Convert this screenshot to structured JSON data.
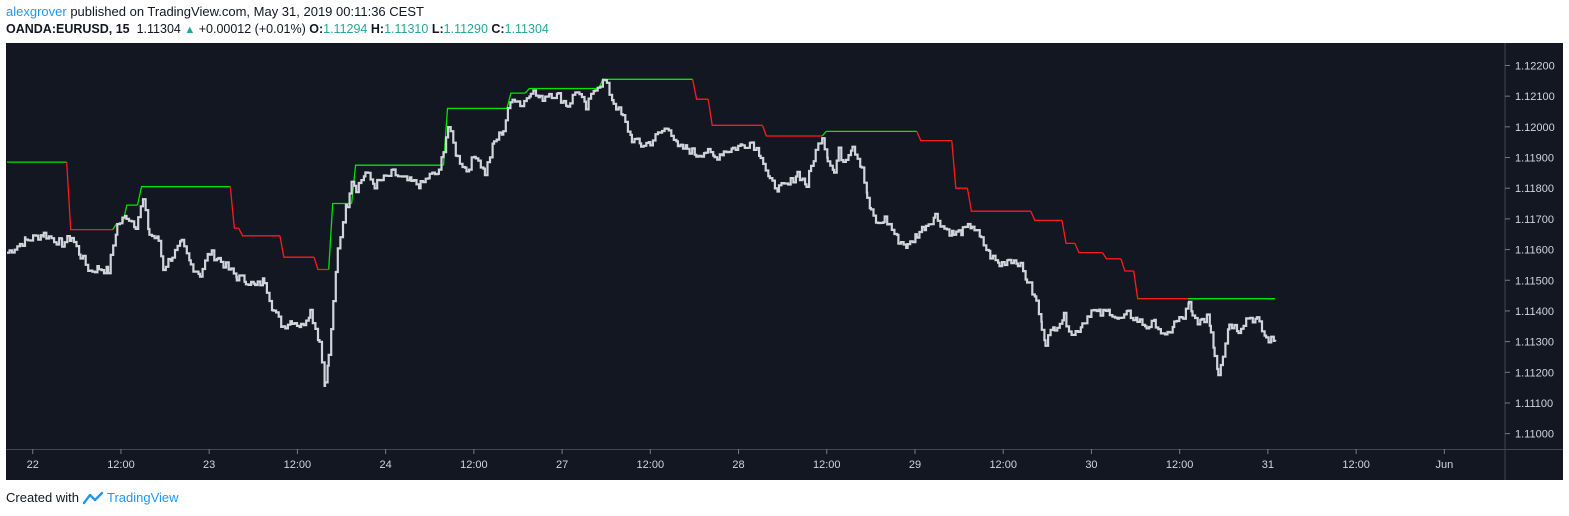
{
  "header": {
    "author": "alexgrover",
    "published_text": " published on TradingView.com, May 31, 2019 00:11:36 CEST",
    "symbol": "OANDA:EURUSD, 15",
    "last_price": "1.11304",
    "change": "+0.00012 (+0.01%)",
    "o_label": "O:",
    "o_value": "1.11294",
    "h_label": "H:",
    "h_value": "1.11310",
    "l_label": "L:",
    "l_value": "1.11290",
    "c_label": "C:",
    "c_value": "1.11304"
  },
  "footer": {
    "created_with": "Created with",
    "brand": "TradingView"
  },
  "colors": {
    "background": "#131722",
    "price": "#d1d4dc",
    "trail_up": "#00e600",
    "trail_down": "#ff1a1a",
    "axis_text": "#d1d4dc"
  },
  "chart_data": {
    "type": "line",
    "y_ticks": [
      "1.12200",
      "1.12100",
      "1.12000",
      "1.11900",
      "1.11800",
      "1.11700",
      "1.11600",
      "1.11500",
      "1.11400",
      "1.11300",
      "1.11200",
      "1.11100",
      "1.11000"
    ],
    "ylim": [
      1.1095,
      1.1227
    ],
    "xlim": [
      0,
      163
    ],
    "x_ticks": [
      {
        "x": 2.8,
        "label": "22"
      },
      {
        "x": 12.4,
        "label": "12:00"
      },
      {
        "x": 22,
        "label": "23"
      },
      {
        "x": 31.6,
        "label": "12:00"
      },
      {
        "x": 41.2,
        "label": "24"
      },
      {
        "x": 50.8,
        "label": "12:00"
      },
      {
        "x": 60.4,
        "label": "27"
      },
      {
        "x": 70,
        "label": "12:00"
      },
      {
        "x": 79.6,
        "label": "28"
      },
      {
        "x": 89.2,
        "label": "12:00"
      },
      {
        "x": 98.8,
        "label": "29"
      },
      {
        "x": 108.4,
        "label": "12:00"
      },
      {
        "x": 118,
        "label": "30"
      },
      {
        "x": 127.6,
        "label": "12:00"
      },
      {
        "x": 137.2,
        "label": "31"
      },
      {
        "x": 146.8,
        "label": "12:00"
      },
      {
        "x": 156.4,
        "label": "Jun"
      }
    ],
    "price_anchors": [
      [
        0,
        1.1159
      ],
      [
        2,
        1.1163
      ],
      [
        4,
        1.1165
      ],
      [
        6,
        1.1162
      ],
      [
        7,
        1.1164
      ],
      [
        8,
        1.1158
      ],
      [
        9,
        1.1153
      ],
      [
        10,
        1.1154
      ],
      [
        11,
        1.1153
      ],
      [
        12,
        1.1168
      ],
      [
        13,
        1.1171
      ],
      [
        14,
        1.1168
      ],
      [
        14.8,
        1.1176
      ],
      [
        15.5,
        1.1165
      ],
      [
        16.5,
        1.1163
      ],
      [
        17,
        1.1154
      ],
      [
        18,
        1.1158
      ],
      [
        19,
        1.1162
      ],
      [
        20,
        1.1155
      ],
      [
        21,
        1.1152
      ],
      [
        22,
        1.1159
      ],
      [
        23,
        1.1157
      ],
      [
        25,
        1.1151
      ],
      [
        26,
        1.115
      ],
      [
        27,
        1.1148
      ],
      [
        28,
        1.115
      ],
      [
        29,
        1.114
      ],
      [
        30,
        1.1135
      ],
      [
        31,
        1.1137
      ],
      [
        32,
        1.1135
      ],
      [
        33,
        1.114
      ],
      [
        34,
        1.113
      ],
      [
        34.6,
        1.1116
      ],
      [
        35,
        1.1125
      ],
      [
        35.5,
        1.1142
      ],
      [
        36,
        1.116
      ],
      [
        36.6,
        1.117
      ],
      [
        37,
        1.1175
      ],
      [
        37.5,
        1.1183
      ],
      [
        38,
        1.118
      ],
      [
        39,
        1.1185
      ],
      [
        40,
        1.1181
      ],
      [
        41,
        1.1183
      ],
      [
        42,
        1.1185
      ],
      [
        43,
        1.1183
      ],
      [
        44,
        1.1182
      ],
      [
        45,
        1.1181
      ],
      [
        46,
        1.1184
      ],
      [
        47,
        1.1185
      ],
      [
        47.5,
        1.1193
      ],
      [
        48,
        1.12
      ],
      [
        49,
        1.119
      ],
      [
        50,
        1.1186
      ],
      [
        51,
        1.1191
      ],
      [
        52,
        1.1185
      ],
      [
        53,
        1.1195
      ],
      [
        54,
        1.1199
      ],
      [
        54.5,
        1.1205
      ],
      [
        55,
        1.121
      ],
      [
        56,
        1.1207
      ],
      [
        57,
        1.1212
      ],
      [
        58,
        1.1209
      ],
      [
        59,
        1.1211
      ],
      [
        60,
        1.121
      ],
      [
        61,
        1.1207
      ],
      [
        62,
        1.1212
      ],
      [
        63,
        1.1206
      ],
      [
        64,
        1.1213
      ],
      [
        65,
        1.1215
      ],
      [
        66,
        1.1208
      ],
      [
        67,
        1.1203
      ],
      [
        68,
        1.1196
      ],
      [
        69,
        1.1194
      ],
      [
        70,
        1.1195
      ],
      [
        71,
        1.1198
      ],
      [
        72,
        1.12
      ],
      [
        73,
        1.1193
      ],
      [
        74,
        1.1193
      ],
      [
        75,
        1.1191
      ],
      [
        76,
        1.1192
      ],
      [
        77,
        1.119
      ],
      [
        78,
        1.1192
      ],
      [
        79,
        1.1193
      ],
      [
        80,
        1.1194
      ],
      [
        81,
        1.1195
      ],
      [
        82,
        1.1191
      ],
      [
        83,
        1.1182
      ],
      [
        84,
        1.118
      ],
      [
        85,
        1.1181
      ],
      [
        86,
        1.1185
      ],
      [
        87,
        1.1181
      ],
      [
        87.5,
        1.1187
      ],
      [
        88,
        1.1192
      ],
      [
        88.7,
        1.1197
      ],
      [
        89.3,
        1.119
      ],
      [
        90,
        1.1185
      ],
      [
        90.5,
        1.1192
      ],
      [
        91,
        1.1189
      ],
      [
        92,
        1.1194
      ],
      [
        93,
        1.1187
      ],
      [
        93.6,
        1.1177
      ],
      [
        94,
        1.1172
      ],
      [
        94.8,
        1.1168
      ],
      [
        95.5,
        1.117
      ],
      [
        96,
        1.1168
      ],
      [
        97,
        1.1163
      ],
      [
        98,
        1.1161
      ],
      [
        99,
        1.1165
      ],
      [
        100,
        1.1168
      ],
      [
        101,
        1.1171
      ],
      [
        102,
        1.1167
      ],
      [
        103,
        1.1165
      ],
      [
        104,
        1.1166
      ],
      [
        105,
        1.1168
      ],
      [
        106,
        1.1163
      ],
      [
        107,
        1.1158
      ],
      [
        108,
        1.1155
      ],
      [
        109,
        1.1157
      ],
      [
        110,
        1.1156
      ],
      [
        111,
        1.115
      ],
      [
        112,
        1.1143
      ],
      [
        112.6,
        1.1135
      ],
      [
        113,
        1.113
      ],
      [
        114,
        1.1135
      ],
      [
        115,
        1.1138
      ],
      [
        116,
        1.1132
      ],
      [
        117,
        1.1136
      ],
      [
        118,
        1.114
      ],
      [
        119,
        1.1139
      ],
      [
        120,
        1.114
      ],
      [
        121,
        1.1137
      ],
      [
        122,
        1.1139
      ],
      [
        123,
        1.1137
      ],
      [
        124,
        1.1135
      ],
      [
        125,
        1.1136
      ],
      [
        126,
        1.1131
      ],
      [
        127,
        1.1136
      ],
      [
        128,
        1.1138
      ],
      [
        128.6,
        1.1142
      ],
      [
        129,
        1.1138
      ],
      [
        130,
        1.1136
      ],
      [
        130.6,
        1.1139
      ],
      [
        131,
        1.1134
      ],
      [
        131.4,
        1.1126
      ],
      [
        131.8,
        1.112
      ],
      [
        132.3,
        1.1126
      ],
      [
        133,
        1.1136
      ],
      [
        134,
        1.1134
      ],
      [
        135,
        1.1138
      ],
      [
        136,
        1.1137
      ],
      [
        137,
        1.1131
      ],
      [
        138,
        1.113
      ]
    ],
    "trailing_stop": [
      {
        "x_start": 0,
        "x_end": 6.5,
        "y": 1.11885,
        "dir": "up"
      },
      {
        "x_start": 6.5,
        "x_end": 11.5,
        "y": 1.11665,
        "dir": "down"
      },
      {
        "x_start": 11.5,
        "x_end": 12.6,
        "y": 1.11685,
        "dir": "up"
      },
      {
        "x_start": 12.6,
        "x_end": 14.2,
        "y": 1.11745,
        "dir": "up"
      },
      {
        "x_start": 14.2,
        "x_end": 24.3,
        "y": 1.11805,
        "dir": "up"
      },
      {
        "x_start": 24.3,
        "x_end": 25.2,
        "y": 1.1167,
        "dir": "down"
      },
      {
        "x_start": 25.2,
        "x_end": 29.7,
        "y": 1.11645,
        "dir": "down"
      },
      {
        "x_start": 29.7,
        "x_end": 33.4,
        "y": 1.11575,
        "dir": "down"
      },
      {
        "x_start": 33.4,
        "x_end": 35.0,
        "y": 1.11535,
        "dir": "down"
      },
      {
        "x_start": 35.0,
        "x_end": 37.5,
        "y": 1.1175,
        "dir": "up"
      },
      {
        "x_start": 37.5,
        "x_end": 47.5,
        "y": 1.11875,
        "dir": "up"
      },
      {
        "x_start": 47.5,
        "x_end": 54.4,
        "y": 1.1206,
        "dir": "up"
      },
      {
        "x_start": 54.4,
        "x_end": 56.4,
        "y": 1.1211,
        "dir": "up"
      },
      {
        "x_start": 56.4,
        "x_end": 64.4,
        "y": 1.12125,
        "dir": "up"
      },
      {
        "x_start": 64.4,
        "x_end": 74.6,
        "y": 1.12155,
        "dir": "up"
      },
      {
        "x_start": 74.6,
        "x_end": 76.3,
        "y": 1.1209,
        "dir": "down"
      },
      {
        "x_start": 76.3,
        "x_end": 82.2,
        "y": 1.12005,
        "dir": "down"
      },
      {
        "x_start": 82.2,
        "x_end": 88.7,
        "y": 1.1197,
        "dir": "down"
      },
      {
        "x_start": 88.7,
        "x_end": 99.0,
        "y": 1.11985,
        "dir": "up"
      },
      {
        "x_start": 99.0,
        "x_end": 102.8,
        "y": 1.11955,
        "dir": "down"
      },
      {
        "x_start": 102.8,
        "x_end": 104.5,
        "y": 1.118,
        "dir": "down"
      },
      {
        "x_start": 104.5,
        "x_end": 111.4,
        "y": 1.11725,
        "dir": "down"
      },
      {
        "x_start": 111.4,
        "x_end": 114.8,
        "y": 1.11695,
        "dir": "down"
      },
      {
        "x_start": 114.8,
        "x_end": 116.2,
        "y": 1.1162,
        "dir": "down"
      },
      {
        "x_start": 116.2,
        "x_end": 119.2,
        "y": 1.1159,
        "dir": "down"
      },
      {
        "x_start": 119.2,
        "x_end": 121.2,
        "y": 1.1157,
        "dir": "down"
      },
      {
        "x_start": 121.2,
        "x_end": 122.6,
        "y": 1.1153,
        "dir": "down"
      },
      {
        "x_start": 122.6,
        "x_end": 128.5,
        "y": 1.1144,
        "dir": "down"
      },
      {
        "x_start": 128.5,
        "x_end": 138.0,
        "y": 1.1144,
        "dir": "up"
      }
    ]
  }
}
